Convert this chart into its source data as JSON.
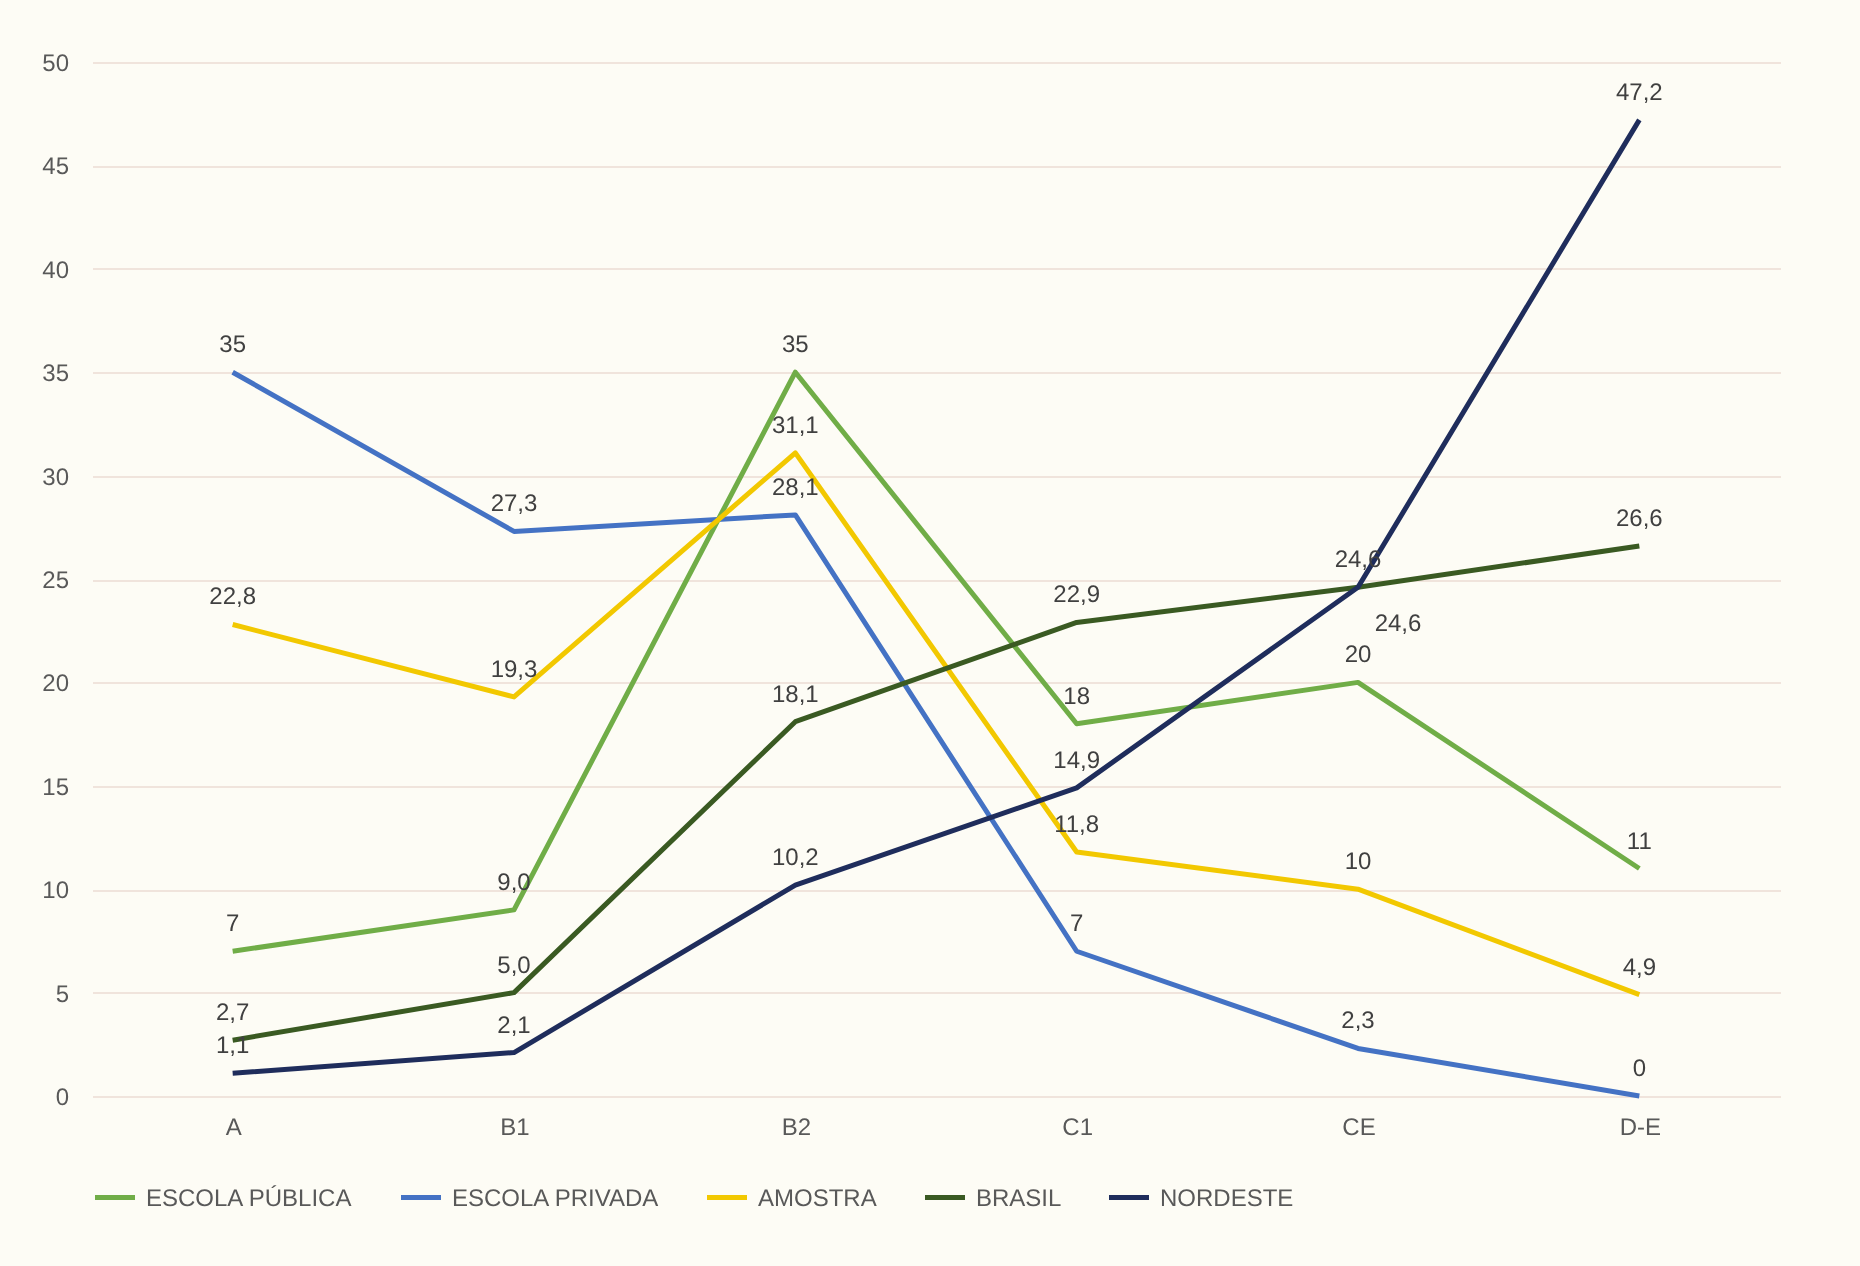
{
  "chart_data": {
    "type": "line",
    "categories": [
      "A",
      "B1",
      "B2",
      "C1",
      "CE",
      "D-E"
    ],
    "series": [
      {
        "name": "ESCOLA PÚBLICA",
        "color": "#70ad47",
        "values": [
          7,
          9.0,
          35,
          18,
          20,
          11
        ],
        "value_labels": [
          "7",
          "9,0",
          "35",
          "18",
          "20",
          "11"
        ]
      },
      {
        "name": "ESCOLA PRIVADA",
        "color": "#4472c4",
        "values": [
          35,
          27.3,
          28.1,
          7,
          2.3,
          0
        ],
        "value_labels": [
          "35",
          "27,3",
          "28,1",
          "7",
          "2,3",
          "0"
        ]
      },
      {
        "name": "AMOSTRA",
        "color": "#f2c800",
        "values": [
          22.8,
          19.3,
          31.1,
          11.8,
          10,
          4.9
        ],
        "value_labels": [
          "22,8",
          "19,3",
          "31,1",
          "11,8",
          "10",
          "4,9"
        ]
      },
      {
        "name": "BRASIL",
        "color": "#3a5a22",
        "values": [
          2.7,
          5.0,
          18.1,
          22.9,
          24.6,
          26.6
        ],
        "value_labels": [
          "2,7",
          "5,0",
          "18,1",
          "22,9",
          "24,6",
          "26,6"
        ]
      },
      {
        "name": "NORDESTE",
        "color": "#1f2d5c",
        "values": [
          1.1,
          2.1,
          10.2,
          14.9,
          24.6,
          47.2
        ],
        "value_labels": [
          "1,1",
          "2,1",
          "10,2",
          "14,9",
          "24,6",
          "47,2"
        ]
      }
    ],
    "ylim": [
      0,
      50
    ],
    "yticks": [
      0,
      5,
      10,
      15,
      20,
      25,
      30,
      35,
      40,
      45,
      50
    ],
    "grid": "y",
    "legend": "bottom",
    "marker": "none",
    "line_style": "solid"
  }
}
